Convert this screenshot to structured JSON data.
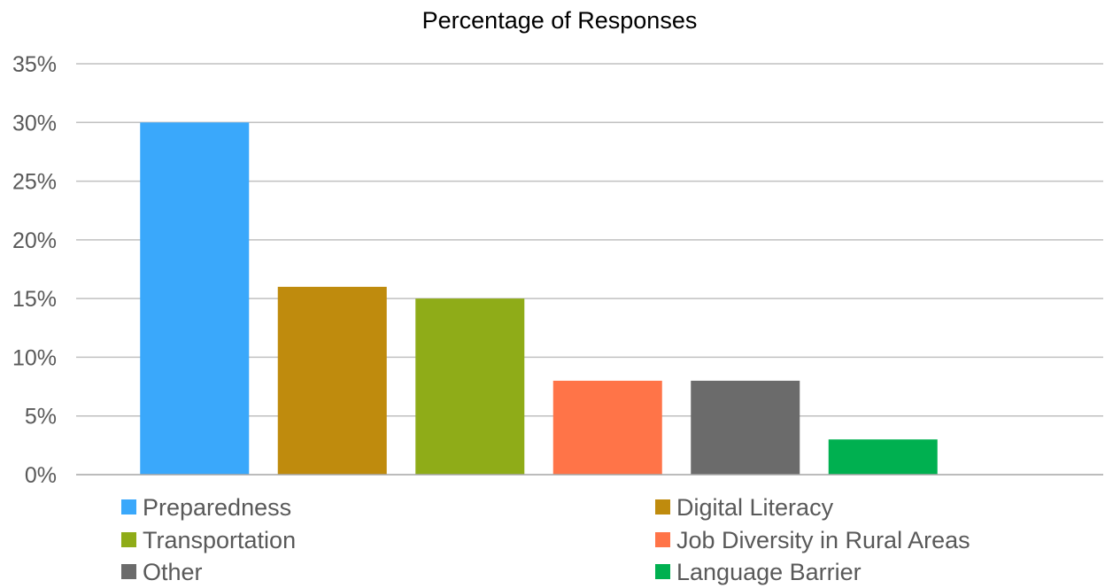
{
  "chart_data": {
    "type": "bar",
    "title": "Percentage of Responses",
    "xlabel": "",
    "ylabel": "",
    "categories": [
      "Preparedness",
      "Digital Literacy",
      "Transportation",
      "Job Diversity in Rural Areas",
      "Other",
      "Language Barrier"
    ],
    "values": [
      30,
      16,
      15,
      8,
      8,
      3
    ],
    "colors": [
      "#3aa8fb",
      "#bf8b0d",
      "#8fac18",
      "#ff7448",
      "#6b6b6b",
      "#00b050"
    ],
    "ylim": [
      0,
      35
    ],
    "yticks": [
      0,
      5,
      10,
      15,
      20,
      25,
      30,
      35
    ],
    "ytick_labels": [
      "0%",
      "5%",
      "10%",
      "15%",
      "20%",
      "25%",
      "30%",
      "35%"
    ],
    "grid": true,
    "legend_position": "bottom",
    "legend_columns": 2
  }
}
